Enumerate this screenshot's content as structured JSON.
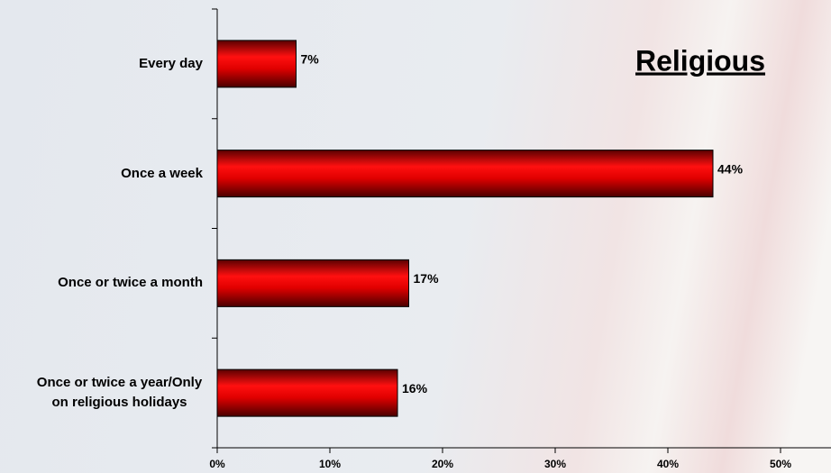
{
  "chart_data": {
    "type": "barh",
    "title": "Religious",
    "categories": [
      "Every day",
      "Once a week",
      "Once or twice a month",
      "Once or twice a year/Only on religious holidays"
    ],
    "values": [
      7,
      44,
      17,
      16
    ],
    "value_labels": [
      "7%",
      "44%",
      "17%",
      "16%"
    ],
    "color": "#e00000",
    "xlim": [
      0,
      50
    ],
    "xticks": [
      {
        "value": 0,
        "label": "0%"
      },
      {
        "value": 10,
        "label": "10%"
      },
      {
        "value": 20,
        "label": "20%"
      },
      {
        "value": 30,
        "label": "30%"
      },
      {
        "value": 40,
        "label": "40%"
      },
      {
        "value": 50,
        "label": "50%"
      }
    ]
  }
}
